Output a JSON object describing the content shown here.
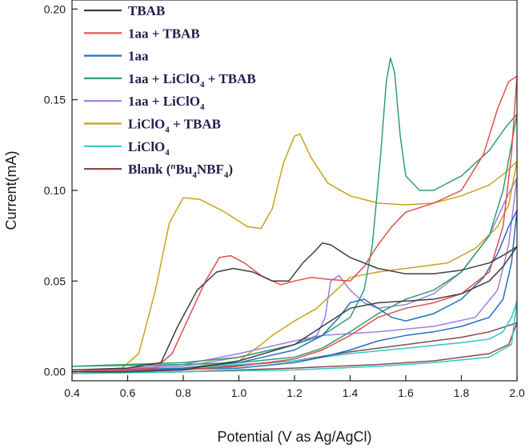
{
  "chart_data": {
    "type": "line",
    "title": "",
    "xlabel": "Potential (V as Ag/AgCl)",
    "ylabel": "Current(mA)",
    "xlim": [
      0.4,
      2.0
    ],
    "ylim": [
      -0.005,
      0.205
    ],
    "grid": false,
    "legend_position": "top-left",
    "x_ticks": [
      "0.4",
      "0.6",
      "0.8",
      "1.0",
      "1.2",
      "1.4",
      "1.6",
      "1.8",
      "2.0"
    ],
    "y_ticks": [
      "0.00",
      "0.05",
      "0.10",
      "0.15",
      "0.20"
    ],
    "series": [
      {
        "name": "TBAB",
        "color": "#3f3f3f",
        "forward": [
          [
            0.4,
            0.001
          ],
          [
            0.6,
            0.002
          ],
          [
            0.72,
            0.005
          ],
          [
            0.78,
            0.025
          ],
          [
            0.85,
            0.045
          ],
          [
            0.92,
            0.055
          ],
          [
            0.98,
            0.057
          ],
          [
            1.05,
            0.055
          ],
          [
            1.12,
            0.05
          ],
          [
            1.18,
            0.05
          ],
          [
            1.23,
            0.06
          ],
          [
            1.27,
            0.066
          ],
          [
            1.3,
            0.071
          ],
          [
            1.33,
            0.07
          ],
          [
            1.4,
            0.063
          ],
          [
            1.5,
            0.057
          ],
          [
            1.6,
            0.054
          ],
          [
            1.7,
            0.054
          ],
          [
            1.8,
            0.056
          ],
          [
            1.9,
            0.06
          ],
          [
            1.96,
            0.065
          ],
          [
            2.0,
            0.069
          ]
        ],
        "reverse": [
          [
            2.0,
            0.069
          ],
          [
            1.95,
            0.058
          ],
          [
            1.9,
            0.05
          ],
          [
            1.8,
            0.043
          ],
          [
            1.7,
            0.04
          ],
          [
            1.6,
            0.039
          ],
          [
            1.5,
            0.038
          ],
          [
            1.4,
            0.035
          ],
          [
            1.3,
            0.025
          ],
          [
            1.2,
            0.015
          ],
          [
            1.0,
            0.006
          ],
          [
            0.8,
            0.001
          ],
          [
            0.6,
            0.0
          ],
          [
            0.4,
            0.0
          ]
        ]
      },
      {
        "name": "1aa + TBAB",
        "color": "#e05050",
        "forward": [
          [
            0.4,
            0.0
          ],
          [
            0.7,
            0.002
          ],
          [
            0.76,
            0.01
          ],
          [
            0.82,
            0.03
          ],
          [
            0.88,
            0.05
          ],
          [
            0.93,
            0.063
          ],
          [
            0.97,
            0.064
          ],
          [
            1.02,
            0.06
          ],
          [
            1.08,
            0.053
          ],
          [
            1.15,
            0.048
          ],
          [
            1.2,
            0.05
          ],
          [
            1.26,
            0.052
          ],
          [
            1.32,
            0.051
          ],
          [
            1.4,
            0.05
          ],
          [
            1.45,
            0.058
          ],
          [
            1.5,
            0.07
          ],
          [
            1.55,
            0.08
          ],
          [
            1.6,
            0.088
          ],
          [
            1.7,
            0.093
          ],
          [
            1.8,
            0.1
          ],
          [
            1.88,
            0.12
          ],
          [
            1.93,
            0.145
          ],
          [
            1.97,
            0.16
          ],
          [
            2.0,
            0.163
          ]
        ],
        "reverse": [
          [
            2.0,
            0.163
          ],
          [
            1.98,
            0.12
          ],
          [
            1.95,
            0.08
          ],
          [
            1.9,
            0.055
          ],
          [
            1.8,
            0.043
          ],
          [
            1.7,
            0.038
          ],
          [
            1.6,
            0.035
          ],
          [
            1.5,
            0.03
          ],
          [
            1.4,
            0.02
          ],
          [
            1.3,
            0.012
          ],
          [
            1.2,
            0.007
          ],
          [
            1.0,
            0.003
          ],
          [
            0.8,
            0.001
          ],
          [
            0.4,
            0.0
          ]
        ]
      },
      {
        "name": "1aa",
        "color": "#2070c0",
        "forward": [
          [
            0.4,
            0.0
          ],
          [
            0.8,
            0.002
          ],
          [
            1.0,
            0.005
          ],
          [
            1.2,
            0.012
          ],
          [
            1.3,
            0.02
          ],
          [
            1.36,
            0.03
          ],
          [
            1.4,
            0.038
          ],
          [
            1.45,
            0.04
          ],
          [
            1.5,
            0.035
          ],
          [
            1.55,
            0.03
          ],
          [
            1.6,
            0.028
          ],
          [
            1.7,
            0.032
          ],
          [
            1.8,
            0.04
          ],
          [
            1.88,
            0.052
          ],
          [
            1.93,
            0.065
          ],
          [
            1.97,
            0.08
          ],
          [
            2.0,
            0.089
          ]
        ],
        "reverse": [
          [
            2.0,
            0.089
          ],
          [
            1.98,
            0.06
          ],
          [
            1.95,
            0.04
          ],
          [
            1.9,
            0.03
          ],
          [
            1.8,
            0.025
          ],
          [
            1.7,
            0.022
          ],
          [
            1.6,
            0.02
          ],
          [
            1.5,
            0.017
          ],
          [
            1.4,
            0.012
          ],
          [
            1.3,
            0.008
          ],
          [
            1.2,
            0.005
          ],
          [
            1.0,
            0.002
          ],
          [
            0.4,
            0.0
          ]
        ]
      },
      {
        "name": "1aa + LiClO4 + TBAB",
        "color": "#2ea070",
        "forward": [
          [
            0.4,
            0.003
          ],
          [
            0.8,
            0.005
          ],
          [
            1.0,
            0.008
          ],
          [
            1.2,
            0.015
          ],
          [
            1.3,
            0.02
          ],
          [
            1.4,
            0.03
          ],
          [
            1.45,
            0.045
          ],
          [
            1.48,
            0.07
          ],
          [
            1.51,
            0.12
          ],
          [
            1.53,
            0.16
          ],
          [
            1.545,
            0.173
          ],
          [
            1.56,
            0.165
          ],
          [
            1.58,
            0.13
          ],
          [
            1.6,
            0.108
          ],
          [
            1.65,
            0.1
          ],
          [
            1.7,
            0.1
          ],
          [
            1.8,
            0.108
          ],
          [
            1.9,
            0.122
          ],
          [
            1.96,
            0.135
          ],
          [
            2.0,
            0.142
          ]
        ],
        "reverse": [
          [
            2.0,
            0.142
          ],
          [
            1.95,
            0.1
          ],
          [
            1.9,
            0.075
          ],
          [
            1.8,
            0.055
          ],
          [
            1.7,
            0.045
          ],
          [
            1.6,
            0.04
          ],
          [
            1.5,
            0.032
          ],
          [
            1.4,
            0.022
          ],
          [
            1.3,
            0.013
          ],
          [
            1.2,
            0.008
          ],
          [
            1.0,
            0.005
          ],
          [
            0.8,
            0.004
          ],
          [
            0.4,
            0.003
          ]
        ]
      },
      {
        "name": "1aa + LiClO4",
        "color": "#a37de0",
        "forward": [
          [
            0.4,
            0.0
          ],
          [
            0.8,
            0.003
          ],
          [
            1.0,
            0.008
          ],
          [
            1.2,
            0.015
          ],
          [
            1.28,
            0.02
          ],
          [
            1.31,
            0.03
          ],
          [
            1.33,
            0.05
          ],
          [
            1.36,
            0.053
          ],
          [
            1.4,
            0.045
          ],
          [
            1.45,
            0.038
          ],
          [
            1.5,
            0.035
          ],
          [
            1.6,
            0.037
          ],
          [
            1.7,
            0.043
          ],
          [
            1.8,
            0.055
          ],
          [
            1.9,
            0.075
          ],
          [
            1.96,
            0.095
          ],
          [
            2.0,
            0.107
          ]
        ],
        "reverse": [
          [
            2.0,
            0.107
          ],
          [
            1.97,
            0.07
          ],
          [
            1.93,
            0.045
          ],
          [
            1.85,
            0.03
          ],
          [
            1.7,
            0.025
          ],
          [
            1.5,
            0.022
          ],
          [
            1.3,
            0.02
          ],
          [
            1.2,
            0.017
          ],
          [
            1.0,
            0.01
          ],
          [
            0.8,
            0.004
          ],
          [
            0.4,
            0.0
          ]
        ]
      },
      {
        "name": "LiClO4 + TBAB",
        "color": "#c8a418",
        "forward": [
          [
            0.4,
            0.0
          ],
          [
            0.58,
            0.002
          ],
          [
            0.64,
            0.01
          ],
          [
            0.7,
            0.045
          ],
          [
            0.75,
            0.082
          ],
          [
            0.8,
            0.096
          ],
          [
            0.86,
            0.095
          ],
          [
            0.95,
            0.088
          ],
          [
            1.03,
            0.08
          ],
          [
            1.08,
            0.079
          ],
          [
            1.12,
            0.09
          ],
          [
            1.16,
            0.115
          ],
          [
            1.2,
            0.13
          ],
          [
            1.22,
            0.131
          ],
          [
            1.26,
            0.118
          ],
          [
            1.32,
            0.104
          ],
          [
            1.4,
            0.097
          ],
          [
            1.5,
            0.093
          ],
          [
            1.6,
            0.092
          ],
          [
            1.7,
            0.093
          ],
          [
            1.8,
            0.097
          ],
          [
            1.9,
            0.103
          ],
          [
            1.96,
            0.11
          ],
          [
            2.0,
            0.116
          ]
        ],
        "reverse": [
          [
            2.0,
            0.116
          ],
          [
            1.97,
            0.092
          ],
          [
            1.93,
            0.08
          ],
          [
            1.85,
            0.068
          ],
          [
            1.75,
            0.06
          ],
          [
            1.6,
            0.057
          ],
          [
            1.5,
            0.055
          ],
          [
            1.4,
            0.052
          ],
          [
            1.35,
            0.045
          ],
          [
            1.28,
            0.035
          ],
          [
            1.2,
            0.028
          ],
          [
            1.12,
            0.02
          ],
          [
            1.08,
            0.015
          ],
          [
            1.0,
            0.006
          ],
          [
            0.8,
            0.002
          ],
          [
            0.4,
            0.0
          ]
        ]
      },
      {
        "name": "LiClO4",
        "color": "#30c8c8",
        "forward": [
          [
            0.4,
            0.0
          ],
          [
            0.8,
            0.002
          ],
          [
            1.2,
            0.006
          ],
          [
            1.4,
            0.01
          ],
          [
            1.6,
            0.013
          ],
          [
            1.8,
            0.016
          ],
          [
            1.9,
            0.018
          ],
          [
            1.95,
            0.022
          ],
          [
            1.98,
            0.03
          ],
          [
            2.0,
            0.039
          ]
        ],
        "reverse": [
          [
            2.0,
            0.039
          ],
          [
            1.98,
            0.015
          ],
          [
            1.9,
            0.008
          ],
          [
            1.7,
            0.005
          ],
          [
            1.5,
            0.003
          ],
          [
            1.2,
            0.001
          ],
          [
            0.8,
            0.0
          ],
          [
            0.4,
            -0.001
          ]
        ]
      },
      {
        "name": "Blank (nBu4NBF4)",
        "color": "#8a4a4a",
        "forward": [
          [
            0.4,
            0.0
          ],
          [
            0.8,
            0.001
          ],
          [
            1.2,
            0.006
          ],
          [
            1.4,
            0.011
          ],
          [
            1.6,
            0.015
          ],
          [
            1.8,
            0.019
          ],
          [
            1.9,
            0.022
          ],
          [
            2.0,
            0.027
          ]
        ],
        "reverse": [
          [
            2.0,
            0.027
          ],
          [
            1.97,
            0.015
          ],
          [
            1.9,
            0.01
          ],
          [
            1.7,
            0.006
          ],
          [
            1.5,
            0.004
          ],
          [
            1.2,
            0.002
          ],
          [
            0.8,
            0.0
          ],
          [
            0.4,
            -0.001
          ]
        ]
      }
    ]
  }
}
